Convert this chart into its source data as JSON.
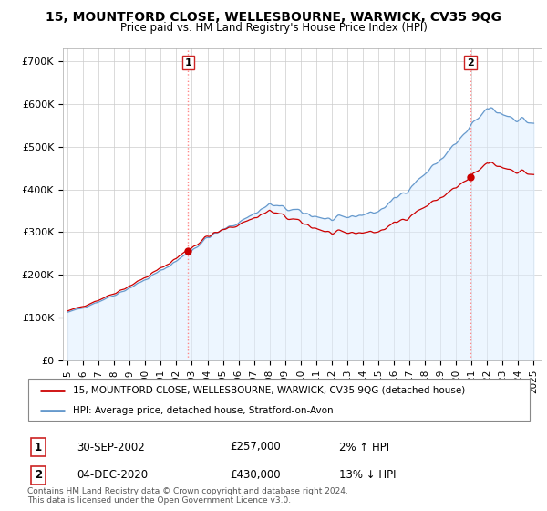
{
  "title": "15, MOUNTFORD CLOSE, WELLESBOURNE, WARWICK, CV35 9QG",
  "subtitle": "Price paid vs. HM Land Registry's House Price Index (HPI)",
  "ylabel_vals": [
    0,
    100000,
    200000,
    300000,
    400000,
    500000,
    600000,
    700000
  ],
  "ylabel_labels": [
    "£0",
    "£100K",
    "£200K",
    "£300K",
    "£400K",
    "£500K",
    "£600K",
    "£700K"
  ],
  "ylim": [
    0,
    730000
  ],
  "xlim_start": 1994.7,
  "xlim_end": 2025.5,
  "xticks": [
    1995,
    1996,
    1997,
    1998,
    1999,
    2000,
    2001,
    2002,
    2003,
    2004,
    2005,
    2006,
    2007,
    2008,
    2009,
    2010,
    2011,
    2012,
    2013,
    2014,
    2015,
    2016,
    2017,
    2018,
    2019,
    2020,
    2021,
    2022,
    2023,
    2024,
    2025
  ],
  "legend_line1": "15, MOUNTFORD CLOSE, WELLESBOURNE, WARWICK, CV35 9QG (detached house)",
  "legend_line2": "HPI: Average price, detached house, Stratford-on-Avon",
  "annotation1_label": "1",
  "annotation1_date": "30-SEP-2002",
  "annotation1_price": "£257,000",
  "annotation1_hpi": "2% ↑ HPI",
  "annotation2_label": "2",
  "annotation2_date": "04-DEC-2020",
  "annotation2_price": "£430,000",
  "annotation2_hpi": "13% ↓ HPI",
  "line_color_red": "#cc0000",
  "line_color_blue": "#6699cc",
  "fill_color_blue": "#ddeeff",
  "dot_color": "#cc0000",
  "grid_color": "#cccccc",
  "bg_color": "#ffffff",
  "vline_color": "#ff8888",
  "footer": "Contains HM Land Registry data © Crown copyright and database right 2024.\nThis data is licensed under the Open Government Licence v3.0.",
  "house_years": [
    2002.75,
    2020.917
  ],
  "house_values": [
    257000,
    430000
  ]
}
